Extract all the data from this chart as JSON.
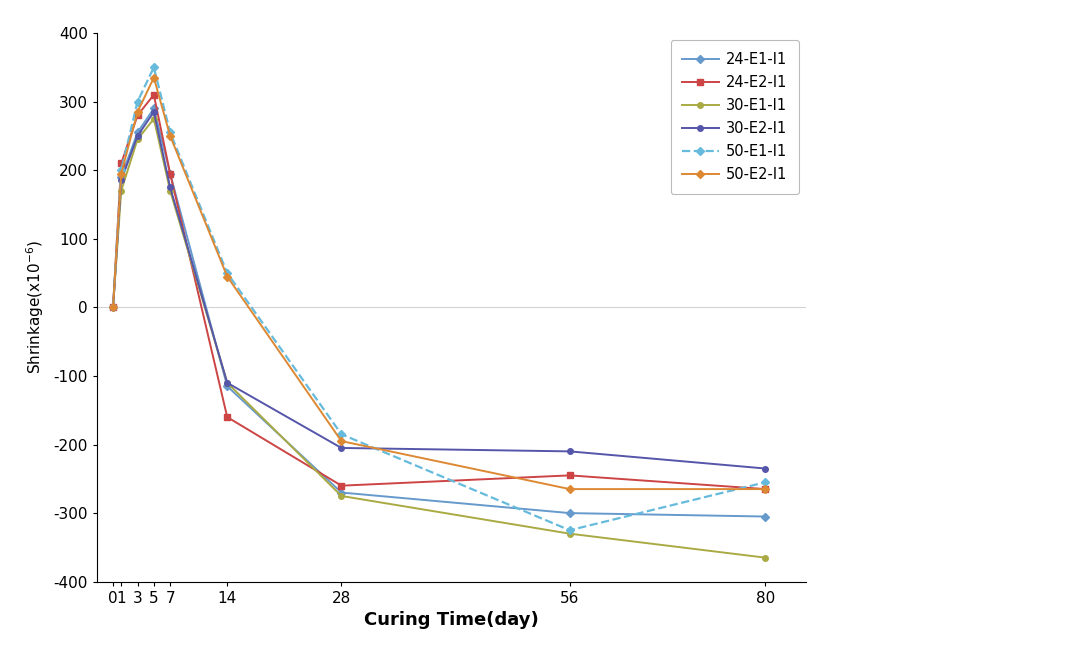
{
  "x_ticks": [
    0,
    1,
    3,
    5,
    7,
    14,
    28,
    56,
    80
  ],
  "series": [
    {
      "label": "24-E1-I1",
      "color": "#6699CC",
      "linestyle": "-",
      "marker": "D",
      "markersize": 4,
      "linewidth": 1.4,
      "values": [
        0,
        190,
        255,
        290,
        195,
        -115,
        -270,
        -300,
        -305
      ]
    },
    {
      "label": "24-E2-I1",
      "color": "#CC4444",
      "linestyle": "-",
      "marker": "s",
      "markersize": 4,
      "linewidth": 1.4,
      "values": [
        0,
        210,
        280,
        310,
        195,
        -160,
        -260,
        -245,
        -265
      ]
    },
    {
      "label": "30-E1-I1",
      "color": "#AAAA44",
      "linestyle": "-",
      "marker": "o",
      "markersize": 4,
      "linewidth": 1.4,
      "values": [
        0,
        170,
        245,
        275,
        170,
        -110,
        -275,
        -330,
        -365
      ]
    },
    {
      "label": "30-E2-I1",
      "color": "#5555AA",
      "linestyle": "-",
      "marker": "o",
      "markersize": 4,
      "linewidth": 1.4,
      "values": [
        0,
        185,
        250,
        285,
        175,
        -110,
        -205,
        -210,
        -235
      ]
    },
    {
      "label": "50-E1-I1",
      "color": "#66BBDD",
      "linestyle": "--",
      "marker": "D",
      "markersize": 4,
      "linewidth": 1.6,
      "values": [
        0,
        200,
        300,
        350,
        255,
        50,
        -185,
        -325,
        -255
      ]
    },
    {
      "label": "50-E2-I1",
      "color": "#DD8833",
      "linestyle": "-",
      "marker": "D",
      "markersize": 4,
      "linewidth": 1.4,
      "values": [
        0,
        195,
        285,
        335,
        250,
        45,
        -195,
        -265,
        -265
      ]
    }
  ],
  "xlabel": "Curing Time(day)",
  "ylabel": "Shrinkage(x10-6)",
  "ylim": [
    -400,
    400
  ],
  "yticks": [
    -400,
    -300,
    -200,
    -100,
    0,
    100,
    200,
    300,
    400
  ],
  "xlim": [
    -2,
    85
  ],
  "background_color": "#ffffff"
}
